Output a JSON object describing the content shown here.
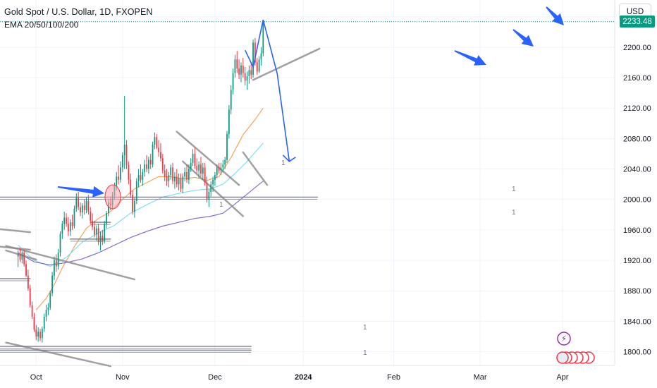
{
  "header": {
    "title": "Gold Spot / U.S. Dollar, 1D, FXOPEN",
    "indicator": "EMA 20/50/100/200",
    "currency_button": "USD",
    "last_price": "2233.48"
  },
  "colors": {
    "up": "#089981",
    "down": "#f23645",
    "ema20": "#f7a35c",
    "ema50": "#7fe0f0",
    "ema100": "#7d6fd0",
    "trendline": "#8a8a8a",
    "projection": "#2962ff",
    "arrow": "#2962ff"
  },
  "chart_data": {
    "type": "candlestick",
    "y_axis_labels": [
      "1800.00",
      "1840.00",
      "1880.00",
      "1920.00",
      "1960.00",
      "2000.00",
      "2040.00",
      "2080.00",
      "2120.00",
      "2160.00",
      "2200.00",
      "2240.00"
    ],
    "ylim": [
      1782,
      2262
    ],
    "x_axis_labels": [
      "Oct",
      "Nov",
      "Dec",
      "2024",
      "Feb",
      "Mar",
      "Apr"
    ],
    "x_axis_label_days": [
      9,
      52,
      98,
      142,
      187,
      230,
      271
    ],
    "xlim": [
      -9,
      297
    ],
    "candles": [
      [
        0,
        1925,
        1933,
        1911,
        1928
      ],
      [
        1,
        1928,
        1936,
        1918,
        1921
      ],
      [
        2,
        1921,
        1932,
        1916,
        1930
      ],
      [
        3,
        1930,
        1934,
        1912,
        1915
      ],
      [
        4,
        1915,
        1920,
        1898,
        1900
      ],
      [
        5,
        1900,
        1908,
        1880,
        1883
      ],
      [
        6,
        1883,
        1888,
        1858,
        1861
      ],
      [
        7,
        1861,
        1866,
        1843,
        1846
      ],
      [
        8,
        1846,
        1851,
        1826,
        1829
      ],
      [
        9,
        1829,
        1835,
        1815,
        1820
      ],
      [
        10,
        1820,
        1832,
        1813,
        1826
      ],
      [
        11,
        1826,
        1830,
        1814,
        1818
      ],
      [
        12,
        1818,
        1833,
        1812,
        1830
      ],
      [
        13,
        1830,
        1850,
        1826,
        1846
      ],
      [
        14,
        1846,
        1862,
        1840,
        1855
      ],
      [
        15,
        1855,
        1864,
        1848,
        1858
      ],
      [
        16,
        1858,
        1880,
        1855,
        1877
      ],
      [
        17,
        1877,
        1905,
        1873,
        1900
      ],
      [
        18,
        1900,
        1925,
        1894,
        1920
      ],
      [
        19,
        1920,
        1928,
        1905,
        1912
      ],
      [
        20,
        1912,
        1935,
        1908,
        1930
      ],
      [
        21,
        1930,
        1958,
        1925,
        1955
      ],
      [
        22,
        1955,
        1972,
        1948,
        1968
      ],
      [
        23,
        1968,
        1984,
        1960,
        1976
      ],
      [
        24,
        1976,
        1982,
        1964,
        1968
      ],
      [
        25,
        1968,
        1977,
        1952,
        1958
      ],
      [
        26,
        1958,
        1974,
        1952,
        1970
      ],
      [
        27,
        1970,
        1980,
        1960,
        1965
      ],
      [
        28,
        1965,
        1992,
        1962,
        1988
      ],
      [
        29,
        1988,
        2008,
        1984,
        2002
      ],
      [
        30,
        2002,
        2010,
        1986,
        1990
      ],
      [
        31,
        1990,
        1996,
        1978,
        1983
      ],
      [
        32,
        1983,
        1995,
        1975,
        1992
      ],
      [
        33,
        1992,
        2000,
        1980,
        1986
      ],
      [
        34,
        1986,
        2003,
        1982,
        1998
      ],
      [
        35,
        1998,
        2006,
        1980,
        1984
      ],
      [
        36,
        1984,
        1990,
        1968,
        1972
      ],
      [
        37,
        1972,
        1982,
        1960,
        1964
      ],
      [
        38,
        1964,
        1972,
        1950,
        1954
      ],
      [
        39,
        1954,
        1966,
        1946,
        1962
      ],
      [
        40,
        1962,
        1968,
        1940,
        1944
      ],
      [
        41,
        1944,
        1958,
        1933,
        1952
      ],
      [
        42,
        1952,
        1960,
        1940,
        1945
      ],
      [
        43,
        1945,
        1972,
        1942,
        1968
      ],
      [
        44,
        1968,
        1985,
        1962,
        1982
      ],
      [
        45,
        1982,
        2000,
        1978,
        1996
      ],
      [
        46,
        1996,
        2002,
        1986,
        1992
      ],
      [
        47,
        1992,
        2010,
        1988,
        2005
      ],
      [
        48,
        2005,
        2022,
        2000,
        2018
      ],
      [
        49,
        2018,
        2036,
        2012,
        2030
      ],
      [
        50,
        2030,
        2045,
        2020,
        2026
      ],
      [
        51,
        2026,
        2050,
        2022,
        2042
      ],
      [
        52,
        2042,
        2062,
        2036,
        2058
      ],
      [
        53,
        2058,
        2136,
        2040,
        2072
      ],
      [
        54,
        2072,
        2078,
        2040,
        2045
      ],
      [
        55,
        2045,
        2050,
        2020,
        2026
      ],
      [
        56,
        2026,
        2034,
        2002,
        2006
      ],
      [
        57,
        2006,
        2012,
        1980,
        1984
      ],
      [
        58,
        1984,
        2002,
        1976,
        1998
      ],
      [
        59,
        1998,
        2028,
        1994,
        2024
      ],
      [
        60,
        2024,
        2040,
        2016,
        2032
      ],
      [
        61,
        2032,
        2046,
        2022,
        2026
      ],
      [
        62,
        2026,
        2040,
        2018,
        2036
      ],
      [
        63,
        2036,
        2052,
        2030,
        2046
      ],
      [
        64,
        2046,
        2058,
        2036,
        2040
      ],
      [
        65,
        2040,
        2056,
        2034,
        2052
      ],
      [
        66,
        2052,
        2060,
        2040,
        2046
      ],
      [
        67,
        2046,
        2076,
        2042,
        2072
      ],
      [
        68,
        2072,
        2088,
        2066,
        2082
      ],
      [
        69,
        2082,
        2086,
        2066,
        2068
      ],
      [
        70,
        2068,
        2078,
        2056,
        2062
      ],
      [
        71,
        2062,
        2074,
        2050,
        2054
      ],
      [
        72,
        2054,
        2060,
        2034,
        2038
      ],
      [
        73,
        2038,
        2046,
        2024,
        2030
      ],
      [
        74,
        2030,
        2040,
        2018,
        2024
      ],
      [
        75,
        2024,
        2036,
        2016,
        2032
      ],
      [
        76,
        2032,
        2046,
        2026,
        2042
      ],
      [
        77,
        2042,
        2048,
        2020,
        2024
      ],
      [
        78,
        2024,
        2036,
        2014,
        2030
      ],
      [
        79,
        2030,
        2040,
        2016,
        2020
      ],
      [
        80,
        2020,
        2034,
        2012,
        2028
      ],
      [
        81,
        2028,
        2034,
        2010,
        2014
      ],
      [
        82,
        2014,
        2034,
        2008,
        2030
      ],
      [
        83,
        2030,
        2042,
        2024,
        2036
      ],
      [
        84,
        2036,
        2046,
        2022,
        2026
      ],
      [
        85,
        2026,
        2046,
        2020,
        2040
      ],
      [
        86,
        2040,
        2054,
        2036,
        2048
      ],
      [
        87,
        2048,
        2066,
        2044,
        2060
      ],
      [
        88,
        2060,
        2068,
        2040,
        2044
      ],
      [
        89,
        2044,
        2054,
        2034,
        2038
      ],
      [
        90,
        2038,
        2050,
        2028,
        2046
      ],
      [
        91,
        2046,
        2056,
        2030,
        2034
      ],
      [
        92,
        2034,
        2048,
        2026,
        2042
      ],
      [
        93,
        2042,
        2048,
        2018,
        2022
      ],
      [
        94,
        2022,
        2030,
        1996,
        2000
      ],
      [
        95,
        2000,
        2014,
        1990,
        2010
      ],
      [
        96,
        2010,
        2024,
        2004,
        2020
      ],
      [
        97,
        2020,
        2030,
        2010,
        2026
      ],
      [
        98,
        2026,
        2036,
        2018,
        2032
      ],
      [
        99,
        2032,
        2046,
        2028,
        2042
      ],
      [
        100,
        2042,
        2048,
        2034,
        2038
      ],
      [
        101,
        2038,
        2048,
        2032,
        2042
      ],
      [
        102,
        2042,
        2052,
        2036,
        2046
      ],
      [
        103,
        2046,
        2056,
        2040,
        2052
      ],
      [
        104,
        2052,
        2090,
        2048,
        2086
      ],
      [
        105,
        2086,
        2124,
        2080,
        2118
      ],
      [
        106,
        2118,
        2150,
        2112,
        2144
      ],
      [
        107,
        2144,
        2172,
        2138,
        2166
      ],
      [
        108,
        2166,
        2190,
        2160,
        2184
      ],
      [
        109,
        2184,
        2195,
        2166,
        2172
      ],
      [
        110,
        2172,
        2184,
        2158,
        2164
      ],
      [
        111,
        2164,
        2180,
        2154,
        2176
      ],
      [
        112,
        2176,
        2186,
        2160,
        2166
      ],
      [
        113,
        2166,
        2174,
        2150,
        2156
      ],
      [
        114,
        2156,
        2168,
        2144,
        2162
      ],
      [
        115,
        2162,
        2176,
        2152,
        2170
      ],
      [
        116,
        2170,
        2180,
        2158,
        2164
      ],
      [
        117,
        2164,
        2210,
        2160,
        2206
      ],
      [
        118,
        2206,
        2212,
        2176,
        2180
      ],
      [
        119,
        2180,
        2186,
        2164,
        2168
      ],
      [
        120,
        2168,
        2188,
        2166,
        2184
      ],
      [
        121,
        2184,
        2200,
        2176,
        2192
      ],
      [
        122,
        2192,
        2236,
        2188,
        2233
      ]
    ],
    "series": [
      {
        "name": "EMA 20",
        "values": [
          [
            9,
            1855
          ],
          [
            14,
            1870
          ],
          [
            18,
            1888
          ],
          [
            22,
            1910
          ],
          [
            28,
            1938
          ],
          [
            34,
            1962
          ],
          [
            40,
            1975
          ],
          [
            46,
            1984
          ],
          [
            52,
            2000
          ],
          [
            58,
            2014
          ],
          [
            64,
            2022
          ],
          [
            70,
            2030
          ],
          [
            76,
            2030
          ],
          [
            82,
            2027
          ],
          [
            88,
            2029
          ],
          [
            94,
            2025
          ],
          [
            100,
            2030
          ],
          [
            106,
            2055
          ],
          [
            112,
            2085
          ],
          [
            118,
            2105
          ],
          [
            122,
            2120
          ]
        ]
      },
      {
        "name": "EMA 50",
        "values": [
          [
            0,
            1940
          ],
          [
            8,
            1920
          ],
          [
            16,
            1912
          ],
          [
            24,
            1924
          ],
          [
            32,
            1944
          ],
          [
            40,
            1956
          ],
          [
            48,
            1966
          ],
          [
            56,
            1982
          ],
          [
            64,
            1993
          ],
          [
            72,
            2003
          ],
          [
            80,
            2008
          ],
          [
            88,
            2012
          ],
          [
            96,
            2014
          ],
          [
            102,
            2020
          ],
          [
            108,
            2034
          ],
          [
            114,
            2050
          ],
          [
            120,
            2068
          ],
          [
            122,
            2074
          ]
        ]
      },
      {
        "name": "EMA 100",
        "values": [
          [
            0,
            1930
          ],
          [
            8,
            1918
          ],
          [
            16,
            1914
          ],
          [
            24,
            1917
          ],
          [
            32,
            1922
          ],
          [
            40,
            1930
          ],
          [
            48,
            1940
          ],
          [
            56,
            1950
          ],
          [
            64,
            1958
          ],
          [
            72,
            1965
          ],
          [
            80,
            1970
          ],
          [
            88,
            1975
          ],
          [
            96,
            1978
          ],
          [
            102,
            1982
          ],
          [
            108,
            1994
          ],
          [
            114,
            2007
          ],
          [
            120,
            2020
          ],
          [
            122,
            2024
          ]
        ]
      }
    ],
    "trendlines": [
      [
        [
          -6,
          1933
        ],
        [
          9,
          1921
        ]
      ],
      [
        [
          -6,
          1939
        ],
        [
          58,
          1895
        ]
      ],
      [
        [
          -6,
          1812
        ],
        [
          46,
          1781
        ]
      ],
      [
        [
          82,
          2050
        ],
        [
          112,
          1978
        ]
      ],
      [
        [
          79,
          2089
        ],
        [
          110,
          2019
        ]
      ],
      [
        [
          112,
          2062
        ],
        [
          124,
          2019
        ]
      ],
      [
        [
          117,
          2157
        ],
        [
          150,
          2198
        ]
      ],
      [
        [
          -9,
          1961
        ],
        [
          6,
          1957
        ]
      ],
      [
        [
          -9,
          1938
        ],
        [
          6,
          1934
        ]
      ],
      [
        [
          -9,
          1896
        ],
        [
          6,
          1896
        ]
      ],
      [
        [
          36,
          1970
        ],
        [
          46,
          1970
        ]
      ],
      [
        [
          26,
          1948
        ],
        [
          46,
          1948
        ]
      ],
      [
        [
          -9,
          2003
        ],
        [
          149,
          2003
        ]
      ],
      [
        [
          -9,
          1807
        ],
        [
          116,
          1807
        ]
      ],
      [
        [
          -9,
          1802
        ],
        [
          116,
          1802
        ]
      ]
    ],
    "projection": [
      [
        113,
        2196
      ],
      [
        117,
        2174
      ],
      [
        122,
        2236
      ],
      [
        129,
        2165
      ],
      [
        135,
        2050
      ]
    ],
    "annotations": [
      "1",
      "1",
      "1",
      "1",
      "1",
      "1"
    ],
    "title": "Gold Spot / U.S. Dollar, 1D, FXOPEN",
    "legend": "top-left",
    "grid": true
  }
}
